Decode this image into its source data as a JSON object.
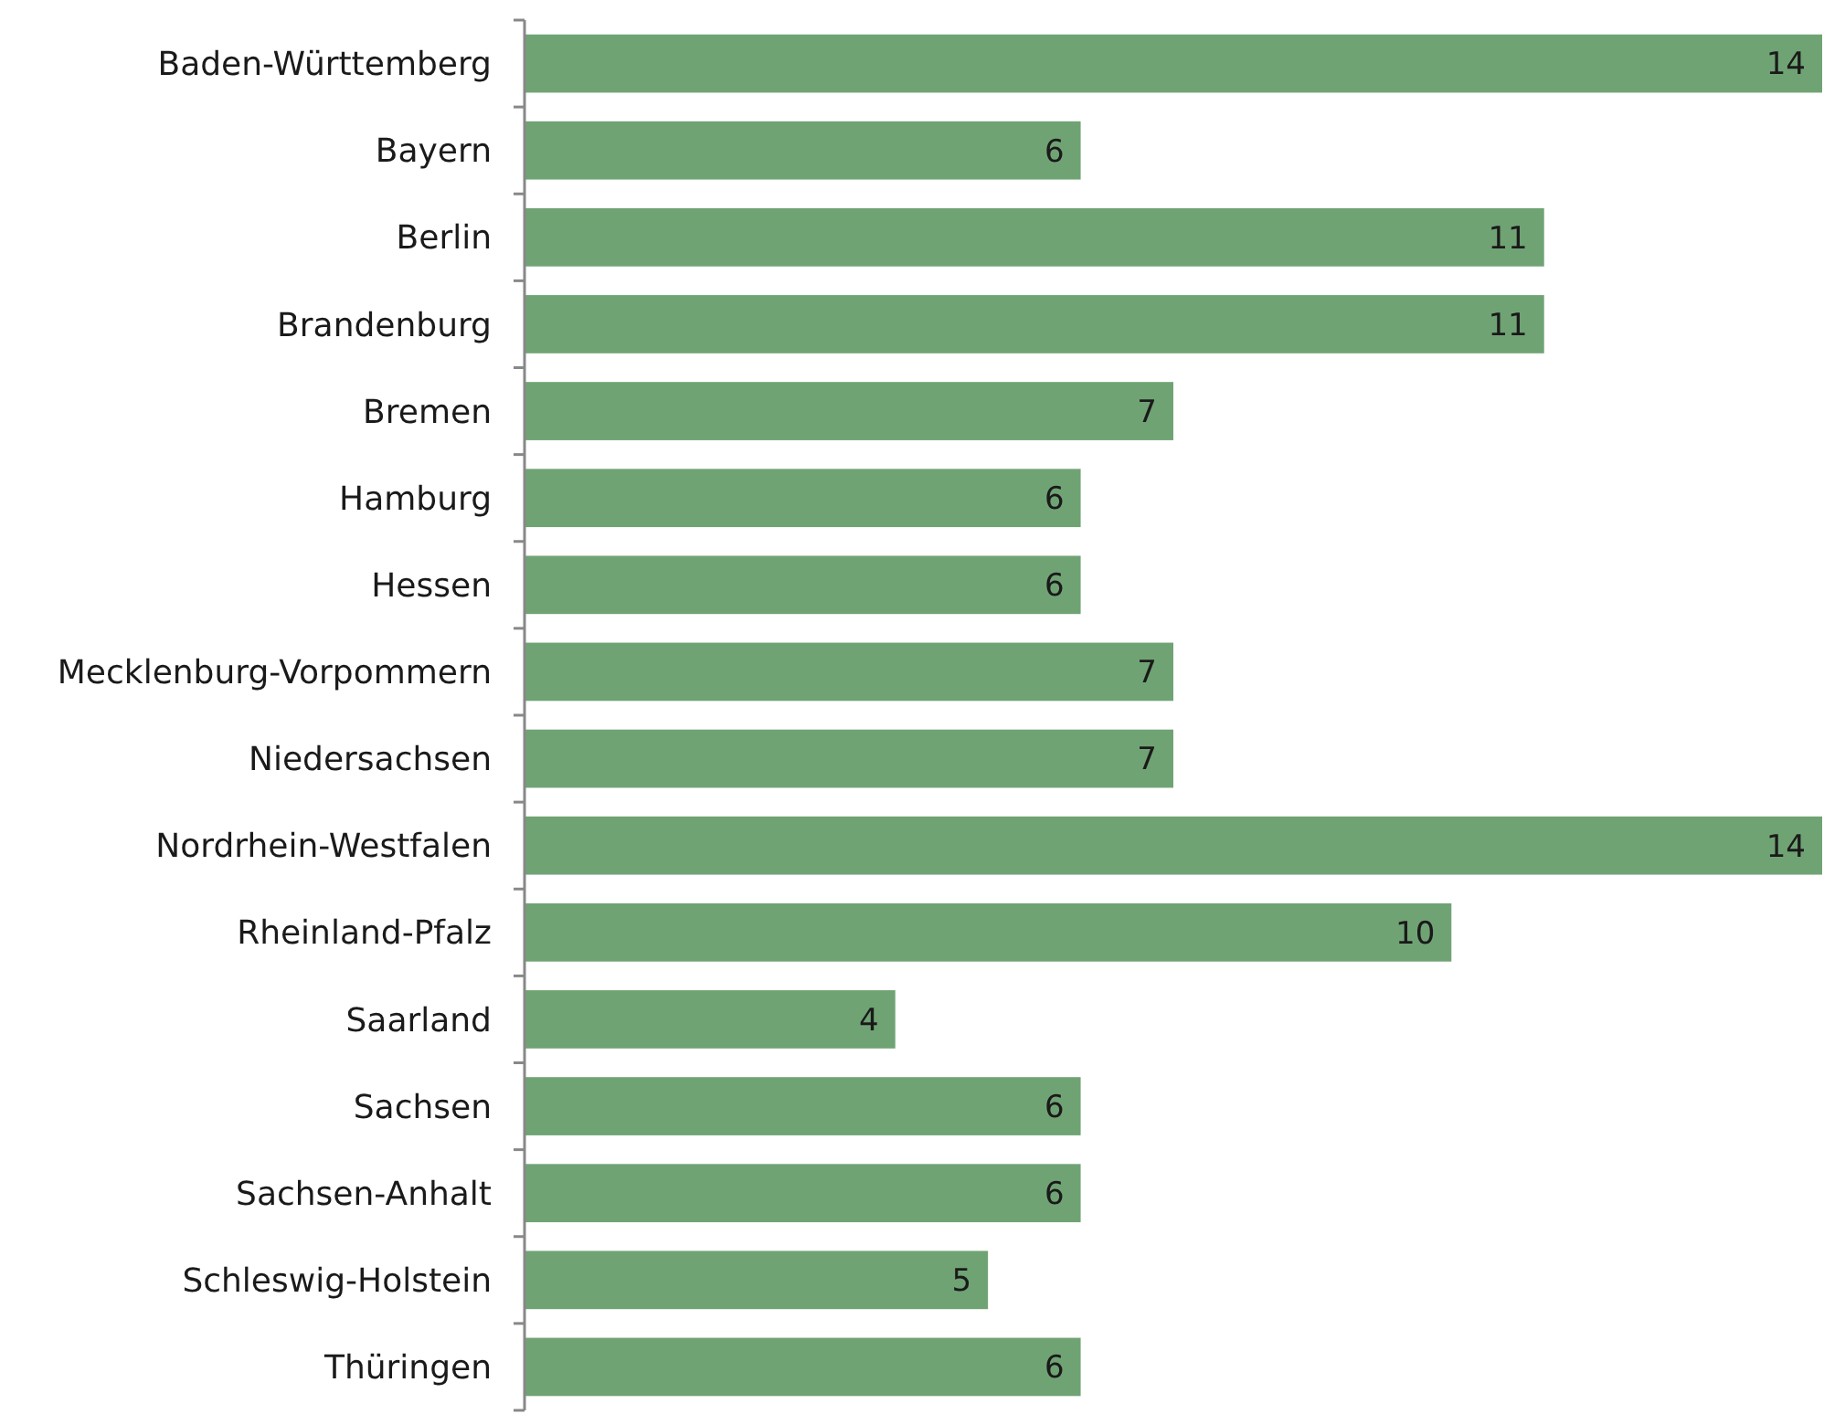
{
  "chart_data": {
    "type": "bar",
    "orientation": "horizontal",
    "data_labels": true,
    "color": "#70a374",
    "categories": [
      "Baden-Württemberg",
      "Bayern",
      "Berlin",
      "Brandenburg",
      "Bremen",
      "Hamburg",
      "Hessen",
      "Mecklenburg-Vorpommern",
      "Niedersachsen",
      "Nordrhein-Westfalen",
      "Rheinland-Pfalz",
      "Saarland",
      "Sachsen",
      "Sachsen-Anhalt",
      "Schleswig-Holstein",
      "Thüringen"
    ],
    "values": [
      14,
      6,
      11,
      11,
      7,
      6,
      6,
      7,
      7,
      14,
      10,
      4,
      6,
      6,
      5,
      6
    ]
  }
}
